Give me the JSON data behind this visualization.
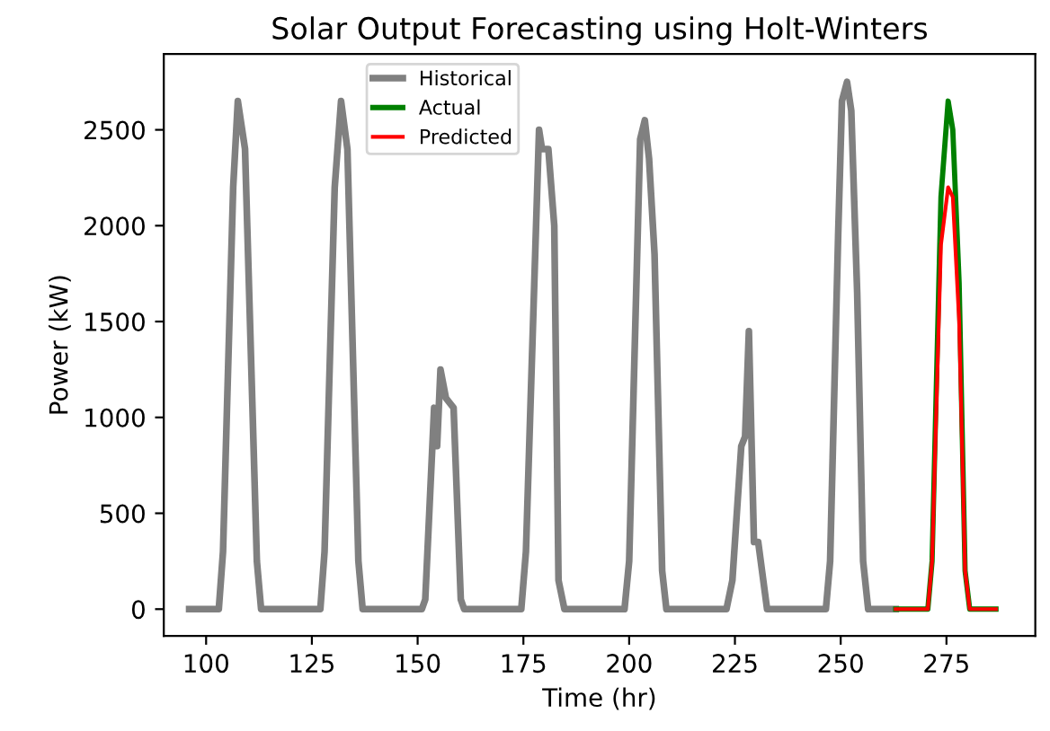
{
  "chart_data": {
    "type": "line",
    "title": "Solar Output Forecasting using Holt-Winters",
    "xlabel": "Time (hr)",
    "ylabel": "Power (kW)",
    "xlim": [
      90,
      296
    ],
    "ylim": [
      -140,
      2895
    ],
    "xticks": [
      100,
      125,
      150,
      175,
      200,
      225,
      250,
      275
    ],
    "yticks": [
      0,
      500,
      1000,
      1500,
      2000,
      2500
    ],
    "legend": "top",
    "grid": false,
    "line_style": "solid",
    "marker": "none",
    "series": [
      {
        "name": "Historical",
        "color": "#808080",
        "x": [
          96,
          103,
          104,
          105,
          106.4,
          107.5,
          109.2,
          112,
          113,
          127,
          128,
          129,
          130.4,
          131.9,
          133.4,
          136,
          137,
          151,
          151.8,
          153.9,
          154.6,
          155.4,
          156.7,
          158.5,
          160.2,
          161,
          174.5,
          175.6,
          178.7,
          179.4,
          180.9,
          182.3,
          183.3,
          184.7,
          198.9,
          200,
          202.6,
          203.7,
          204.7,
          206,
          207.8,
          208.8,
          223,
          224.4,
          226.5,
          227.4,
          228.3,
          229.5,
          230.5,
          232.6,
          246.5,
          247.5,
          249.4,
          250.3,
          251.5,
          252.5,
          253.9,
          255.3,
          256.5,
          263
        ],
        "values": [
          0,
          0,
          300,
          1100,
          2200,
          2650,
          2400,
          250,
          0,
          0,
          300,
          1100,
          2200,
          2650,
          2400,
          250,
          0,
          0,
          50,
          1050,
          850,
          1250,
          1100,
          1050,
          50,
          0,
          0,
          300,
          2500,
          2400,
          2400,
          2000,
          150,
          0,
          0,
          250,
          2450,
          2550,
          2350,
          1850,
          200,
          0,
          0,
          150,
          850,
          900,
          1450,
          350,
          350,
          0,
          0,
          250,
          1950,
          2650,
          2750,
          2600,
          1650,
          250,
          0,
          0
        ]
      },
      {
        "name": "Actual",
        "color": "#008000",
        "x": [
          263,
          270.6,
          271.6,
          273.7,
          275.4,
          276.5,
          278,
          279.4,
          280.5,
          286.7
        ],
        "values": [
          0,
          0,
          250,
          2150,
          2650,
          2500,
          1700,
          200,
          0,
          0
        ]
      },
      {
        "name": "Predicted",
        "color": "#ff0000",
        "x": [
          263,
          270.6,
          271.6,
          273.7,
          275.4,
          276.5,
          278,
          279.4,
          280.5,
          286.7
        ],
        "values": [
          0,
          0,
          250,
          1900,
          2200,
          2150,
          1500,
          200,
          0,
          0
        ]
      }
    ]
  }
}
